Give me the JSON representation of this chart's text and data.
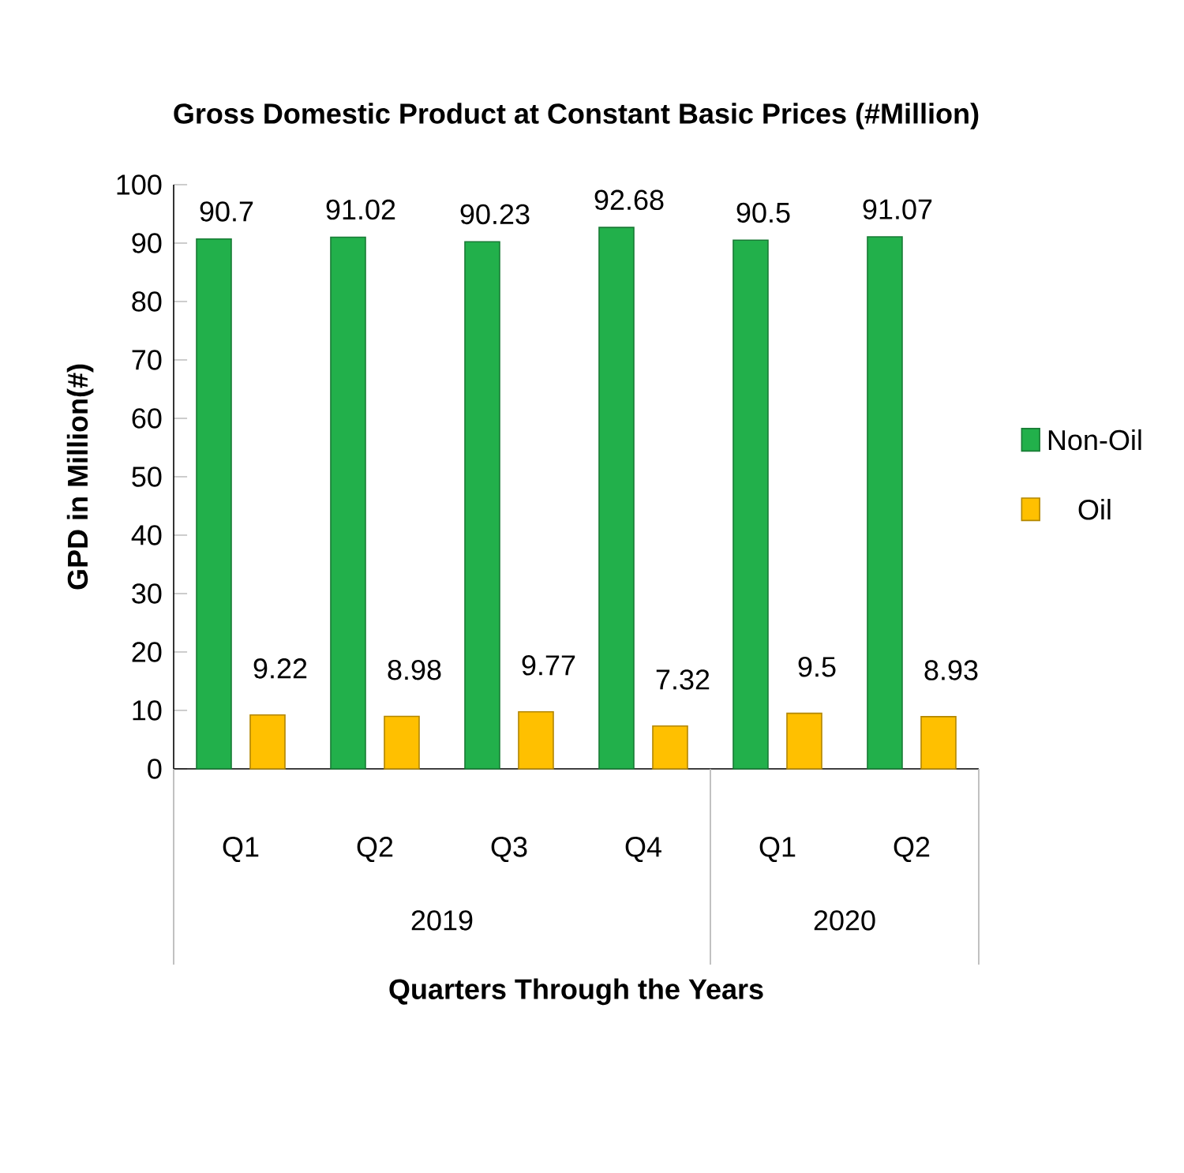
{
  "chart_data": {
    "type": "bar",
    "title": "Gross Domestic Product at Constant Basic Prices (#Million)",
    "xlabel": "Quarters  Through the Years",
    "ylabel": "GPD in Million(#)",
    "categories": [
      "Q1",
      "Q2",
      "Q3",
      "Q4",
      "Q1",
      "Q2"
    ],
    "series": [
      {
        "name": "Non-Oil",
        "color": "#22b04b",
        "values": [
          90.7,
          91.02,
          90.23,
          92.68,
          90.5,
          91.07
        ]
      },
      {
        "name": "Oil",
        "color": "#ffc000",
        "values": [
          9.22,
          8.98,
          9.77,
          7.32,
          9.5,
          8.93
        ]
      }
    ],
    "annotations": [
      "2019",
      "2020"
    ],
    "ylim": [
      0,
      100
    ],
    "yticks": [
      0,
      10,
      20,
      30,
      40,
      50,
      60,
      70,
      80,
      90,
      100
    ],
    "data_labels": true,
    "legend": "right",
    "grid": false
  }
}
